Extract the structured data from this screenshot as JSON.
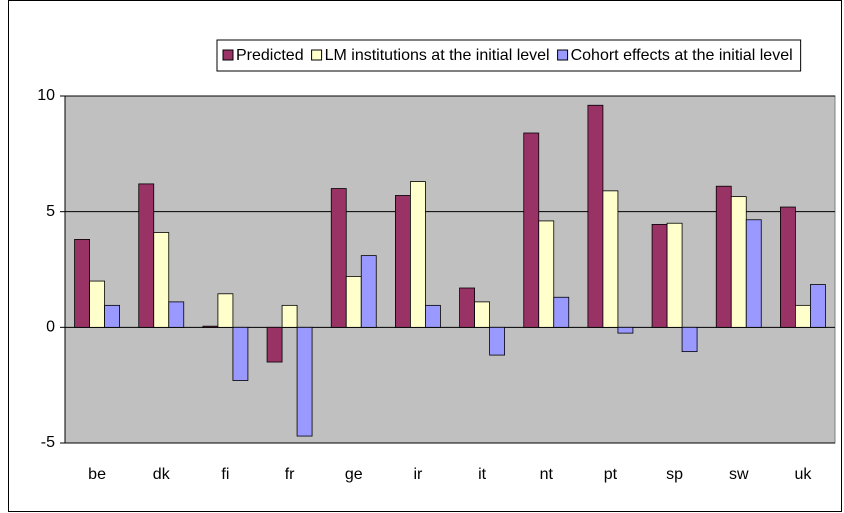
{
  "chart_data": {
    "type": "bar",
    "categories": [
      "be",
      "dk",
      "fi",
      "fr",
      "ge",
      "ir",
      "it",
      "nt",
      "pt",
      "sp",
      "sw",
      "uk"
    ],
    "series": [
      {
        "name": "Predicted",
        "color": "#993366",
        "values": [
          3.8,
          6.2,
          0.05,
          -1.5,
          6.0,
          5.7,
          1.7,
          8.4,
          9.6,
          4.45,
          6.1,
          5.2
        ]
      },
      {
        "name": "LM institutions at the initial level",
        "color": "#FFFFCC",
        "values": [
          2.0,
          4.1,
          1.45,
          0.95,
          2.2,
          6.3,
          1.1,
          4.6,
          5.9,
          4.5,
          5.65,
          0.95
        ]
      },
      {
        "name": "Cohort effects at the initial level",
        "color": "#9999FF",
        "values": [
          0.95,
          1.1,
          -2.3,
          -4.7,
          3.1,
          0.95,
          -1.2,
          1.3,
          -0.25,
          -1.05,
          4.65,
          1.85
        ]
      }
    ],
    "ylim": [
      -5,
      10
    ],
    "yticks": [
      -5,
      0,
      5,
      10
    ],
    "grid": true,
    "legend": "top",
    "plot_background": "#C0C0C0"
  }
}
